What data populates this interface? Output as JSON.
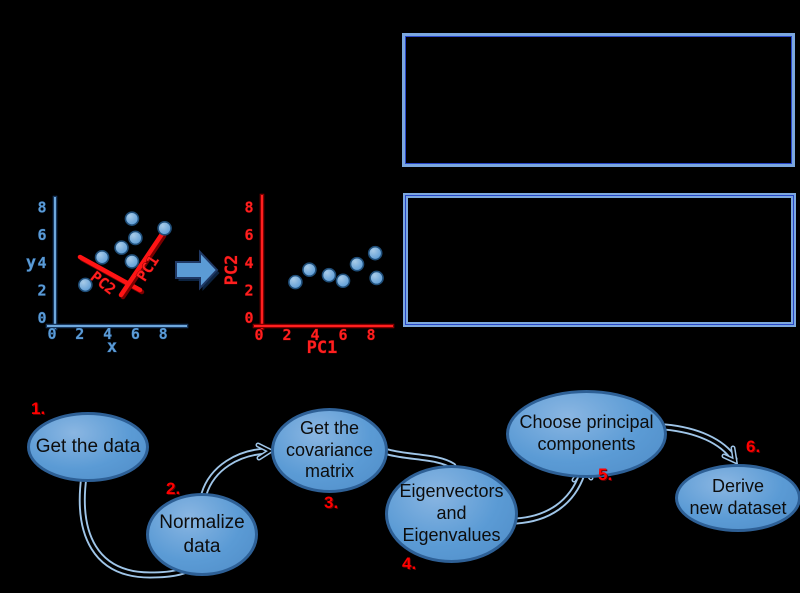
{
  "window": {
    "background": "#000000"
  },
  "plots": {
    "xy": {
      "x_label": "x",
      "y_label": "y",
      "x_ticks": [
        "0",
        "2",
        "4",
        "6",
        "8"
      ],
      "y_ticks": [
        "0",
        "2",
        "4",
        "6",
        "8"
      ],
      "pc1_line_label": "PC1",
      "pc2_line_label": "PC2"
    },
    "pc": {
      "x_label": "PC1",
      "y_label": "PC2",
      "x_ticks": [
        "0",
        "2",
        "4",
        "6",
        "8"
      ],
      "y_ticks": [
        "0",
        "2",
        "4",
        "6",
        "8"
      ]
    }
  },
  "chart_data": [
    {
      "type": "scatter",
      "title": "",
      "xlabel": "x",
      "ylabel": "y",
      "xlim": [
        0,
        9
      ],
      "ylim": [
        0,
        9
      ],
      "grid": false,
      "points": [
        [
          2.4,
          2.4
        ],
        [
          3.6,
          4.4
        ],
        [
          5.0,
          5.1
        ],
        [
          5.75,
          7.2
        ],
        [
          6.0,
          5.8
        ],
        [
          5.75,
          4.1
        ],
        [
          8.1,
          6.5
        ]
      ],
      "annotations": [
        "PC2",
        "PC1"
      ]
    },
    {
      "type": "scatter",
      "title": "",
      "xlabel": "PC1",
      "ylabel": "PC2",
      "xlim": [
        0,
        9
      ],
      "ylim": [
        0,
        9
      ],
      "grid": false,
      "points": [
        [
          2.6,
          2.6
        ],
        [
          3.6,
          3.5
        ],
        [
          5.0,
          3.1
        ],
        [
          6.0,
          2.7
        ],
        [
          7.0,
          3.9
        ],
        [
          8.3,
          4.7
        ],
        [
          8.4,
          2.9
        ]
      ]
    }
  ],
  "colors": {
    "node_fill": "#5b9bd5",
    "node_border": "#2e6096",
    "connector_light": "#9fc5e8",
    "plot1_axis_light": "#6fa8dc",
    "plot1_axis_dark": "#17365d",
    "plot2_axis_light": "#ff1f1f",
    "plot2_axis_dark": "#7f0000",
    "pc_line_red": "#ff1414",
    "accent_red": "#ff0000",
    "box_border_light": "#7ba7de",
    "box_border_dark": "#2746c8",
    "arrow_fill": "#5b9bd5",
    "arrow_outline": "#1f3864",
    "dot_stroke": "#1f4e79"
  },
  "flow": {
    "steps": [
      {
        "number": "1.",
        "label": "Get the data"
      },
      {
        "number": "2.",
        "label": "Normalize\ndata"
      },
      {
        "number": "3.",
        "label": "Get the\ncovariance\nmatrix"
      },
      {
        "number": "4.",
        "label": "Eigenvectors\nand\nEigenvalues"
      },
      {
        "number": "5.",
        "label": "Choose principal\ncomponents"
      },
      {
        "number": "6.",
        "label": "Derive\nnew dataset"
      }
    ]
  }
}
